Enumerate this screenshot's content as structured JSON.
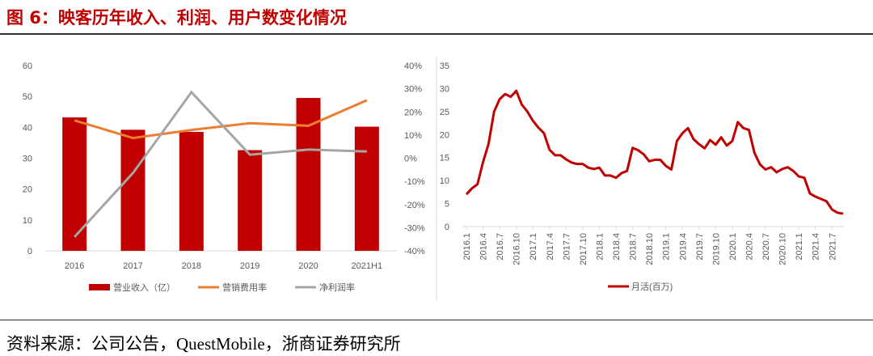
{
  "title": "图 6：映客历年收入、利润、用户数变化情况",
  "source": "资料来源：公司公告，QuestMobile，浙商证券研究所",
  "colors": {
    "bar": "#c00000",
    "marketing": "#ed7d31",
    "net": "#a5a5a5",
    "mau": "#c00000"
  },
  "chart_data": [
    {
      "type": "bar",
      "categories": [
        "2016",
        "2017",
        "2018",
        "2019",
        "2020",
        "2021H1"
      ],
      "ylim": [
        0,
        60
      ],
      "yticks": [
        "0",
        "10",
        "20",
        "30",
        "40",
        "50",
        "60"
      ],
      "y2lim": [
        -40,
        40
      ],
      "y2ticks": [
        "-40%",
        "-30%",
        "-20%",
        "-10%",
        "0%",
        "10%",
        "20%",
        "30%",
        "40%"
      ],
      "series": [
        {
          "name": "营业收入（亿）",
          "type": "bar",
          "axis": "left",
          "values": [
            43.2,
            39.2,
            38.5,
            32.6,
            49.5,
            40.2
          ]
        },
        {
          "name": "营销费用率",
          "type": "line",
          "axis": "right",
          "values": [
            16.3,
            8.7,
            12.2,
            15.1,
            14.0,
            25.0
          ]
        },
        {
          "name": "净利润率",
          "type": "line",
          "axis": "right",
          "values": [
            -34.0,
            -6.4,
            28.5,
            1.5,
            3.7,
            2.9
          ]
        }
      ],
      "legend": "bottom"
    },
    {
      "type": "line",
      "ylim": [
        0,
        35
      ],
      "yticks": [
        "0",
        "5",
        "10",
        "15",
        "20",
        "25",
        "30",
        "35"
      ],
      "xtick_labels": [
        "2016.1",
        "2016.4",
        "2016.7",
        "2016.10",
        "2017.1",
        "2017.4",
        "2017.7",
        "2017.10",
        "2018.1",
        "2018.4",
        "2018.7",
        "2018.10",
        "2019.1",
        "2019.4",
        "2019.7",
        "2019.10",
        "2020.1",
        "2020.4",
        "2020.7",
        "2020.10",
        "2021.1",
        "2021.4",
        "2021.7"
      ],
      "series": [
        {
          "name": "月活(百万)",
          "values": [
            7,
            8.3,
            9.2,
            14,
            18,
            25,
            27.7,
            28.8,
            28.2,
            29.5,
            26.5,
            25,
            23,
            21.5,
            20.3,
            16.7,
            15.5,
            15.5,
            14.6,
            13.9,
            13.6,
            13.6,
            12.8,
            12.5,
            12.8,
            11.1,
            11.1,
            10.6,
            11.6,
            12.1,
            17.1,
            16.6,
            15.7,
            14.2,
            14.5,
            14.5,
            13.2,
            12.4,
            18.6,
            20.3,
            21.4,
            19,
            17.9,
            17,
            18.8,
            17.8,
            19.4,
            17.6,
            18.6,
            22.7,
            21.4,
            21,
            16,
            13.5,
            12.4,
            12.9,
            11.8,
            12.5,
            12.9,
            12.1,
            10.9,
            10.6,
            7.2,
            6.5,
            6.0,
            5.5,
            3.7,
            3.0,
            2.8
          ]
        }
      ],
      "legend": "bottom"
    }
  ]
}
